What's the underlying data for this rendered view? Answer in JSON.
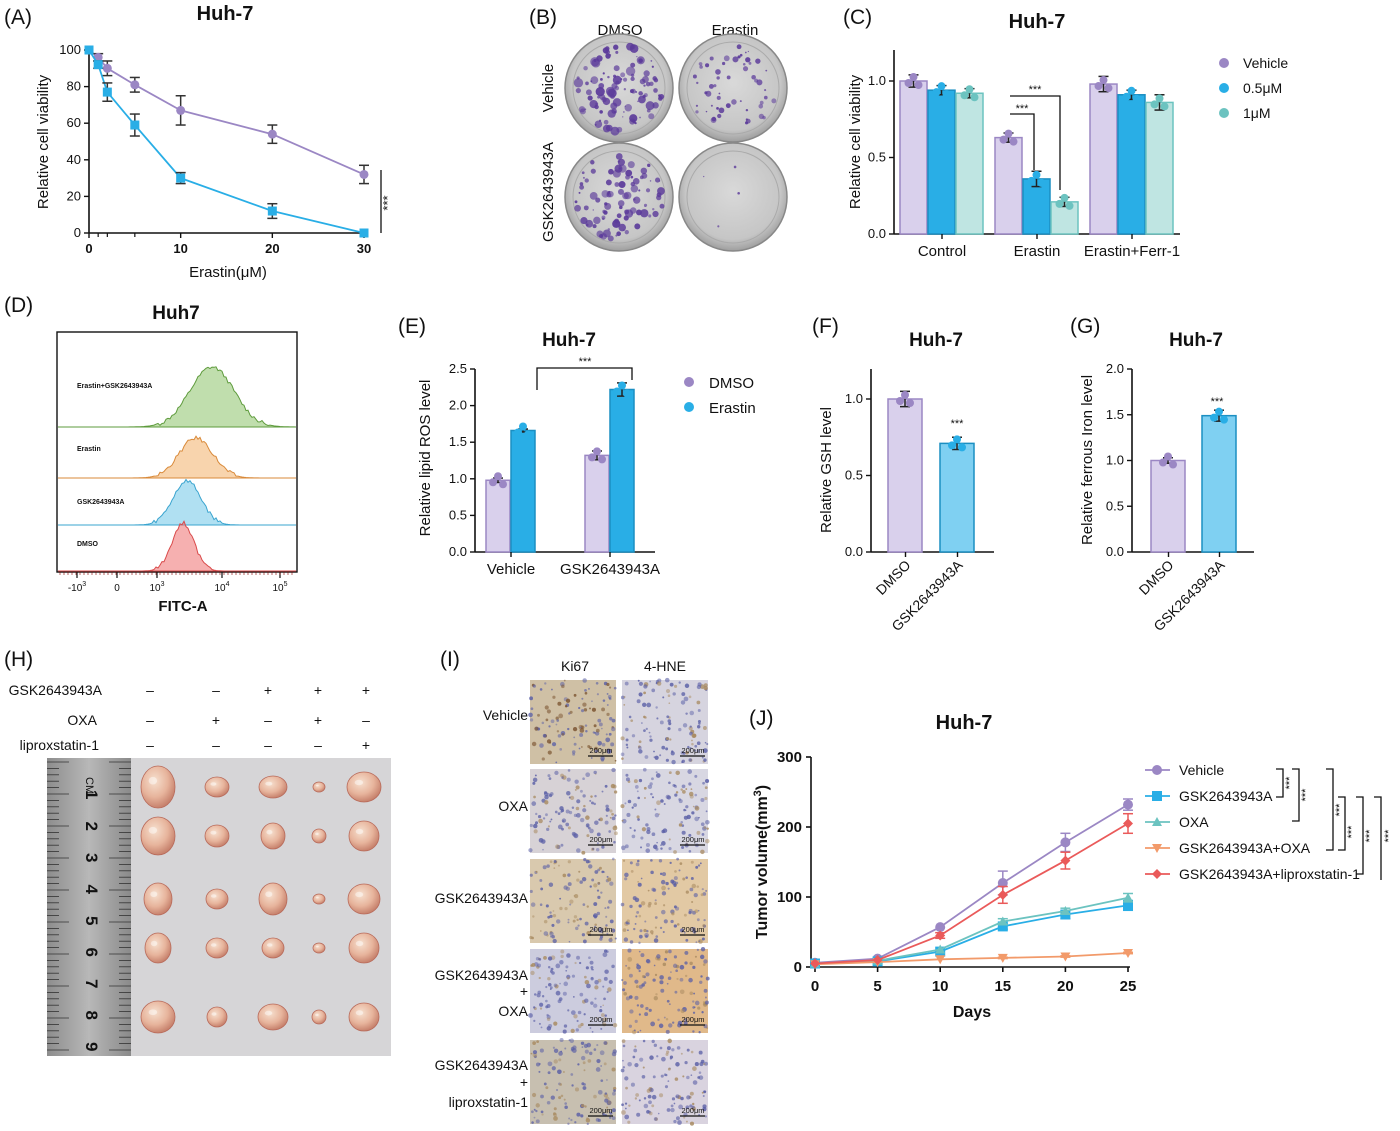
{
  "colors": {
    "purple": "#9b87c4",
    "purple_fill": "#d9d0ec",
    "cyan": "#29aee6",
    "cyan_fill": "#7fd0f2",
    "teal": "#6cc3c0",
    "teal_fill": "#bfe5e2",
    "orange": "#f29a6a",
    "red": "#ea5a5a",
    "hist_green": "#8cc36a",
    "hist_orange": "#f2b06a",
    "hist_blue": "#6fc6e8",
    "hist_red": "#ee7070"
  },
  "panels": {
    "A": {
      "letter": "(A)",
      "title": "Huh-7",
      "xlabel": "Erastin(μM)",
      "ylabel": "Relative cell viability",
      "sig": "***",
      "xticks": [
        "0",
        "10",
        "20",
        "30"
      ],
      "yticks": [
        "0",
        "20",
        "40",
        "60",
        "80",
        "100"
      ]
    },
    "B": {
      "letter": "(B)",
      "col_labels": [
        "DMSO",
        "Erastin"
      ],
      "row_labels": [
        "Vehicle",
        "GSK2643943A"
      ]
    },
    "C": {
      "letter": "(C)",
      "title": "Huh-7",
      "ylabel": "Relative cell viability",
      "categories": [
        "Control",
        "Erastin",
        "Erastin+Ferr-1"
      ],
      "legend": [
        "Vehicle",
        "0.5μM",
        "1μM"
      ],
      "sig1": "***",
      "sig2": "***",
      "yticks": [
        "0.0",
        "0.5",
        "1.0"
      ]
    },
    "D": {
      "letter": "(D)",
      "title": "Huh7",
      "xlabel": "FITC-A",
      "tracks": [
        "Erastin+GSK2643943A",
        "Erastin",
        "GSK2643943A",
        "DMSO"
      ],
      "xticks": [
        "-10",
        "0",
        "10",
        "10",
        "10"
      ],
      "xtick_exps": [
        "3",
        "",
        "3",
        "4",
        "5"
      ]
    },
    "E": {
      "letter": "(E)",
      "title": "Huh-7",
      "ylabel": "Relative lipid ROS level",
      "categories": [
        "Vehicle",
        "GSK2643943A"
      ],
      "legend": [
        "DMSO",
        "Erastin"
      ],
      "sig": "***",
      "yticks": [
        "0.0",
        "0.5",
        "1.0",
        "1.5",
        "2.0",
        "2.5"
      ]
    },
    "F": {
      "letter": "(F)",
      "title": "Huh-7",
      "ylabel": "Relative GSH level",
      "categories": [
        "DMSO",
        "GSK2643943A"
      ],
      "sig": "***",
      "yticks": [
        "0.0",
        "0.5",
        "1.0"
      ]
    },
    "G": {
      "letter": "(G)",
      "title": "Huh-7",
      "ylabel": "Relative ferrous Iron level",
      "categories": [
        "DMSO",
        "GSK2643943A"
      ],
      "sig": "***",
      "yticks": [
        "0.0",
        "0.5",
        "1.0",
        "1.5",
        "2.0"
      ]
    },
    "H": {
      "letter": "(H)",
      "rows": [
        {
          "label": "GSK2643943A",
          "marks": [
            "–",
            "–",
            "+",
            "+",
            "+"
          ]
        },
        {
          "label": "OXA",
          "marks": [
            "–",
            "+",
            "–",
            "+",
            "–"
          ]
        },
        {
          "label": "liproxstatin-1",
          "marks": [
            "–",
            "–",
            "–",
            "–",
            "+"
          ]
        }
      ],
      "ruler_unit": "CM",
      "ruler_numbers": [
        "1",
        "2",
        "3",
        "4",
        "5",
        "6",
        "7",
        "8",
        "9"
      ]
    },
    "I": {
      "letter": "(I)",
      "col_labels": [
        "Ki67",
        "4-HNE"
      ],
      "row_labels": [
        [
          "Vehicle"
        ],
        [
          "OXA"
        ],
        [
          "GSK2643943A"
        ],
        [
          "GSK2643943A",
          "+",
          "OXA"
        ],
        [
          "GSK2643943A",
          "+",
          "liproxstatin-1"
        ]
      ],
      "scale_label": "200μm"
    },
    "J": {
      "letter": "(J)",
      "title": "Huh-7",
      "xlabel": "Days",
      "ylabel_main": "Tumor volume(mm",
      "ylabel_sup": "3",
      "ylabel_end": ")",
      "xticks": [
        "0",
        "5",
        "10",
        "15",
        "20",
        "25"
      ],
      "yticks": [
        "0",
        "100",
        "200",
        "300"
      ],
      "sig": "***"
    }
  },
  "chart_data": [
    {
      "panel": "A",
      "type": "line",
      "title": "Huh-7",
      "xlabel": "Erastin(μM)",
      "ylabel": "Relative cell viability",
      "xlim": [
        0,
        30
      ],
      "ylim": [
        0,
        100
      ],
      "series": [
        {
          "name": "",
          "color": "#9b87c4",
          "x": [
            0,
            1,
            2,
            5,
            10,
            20,
            30
          ],
          "y": [
            100,
            96,
            90,
            81,
            67,
            54,
            32
          ],
          "err": [
            0,
            2,
            4,
            4,
            8,
            5,
            5
          ]
        },
        {
          "name": "",
          "color": "#29aee6",
          "x": [
            0,
            1,
            2,
            5,
            10,
            20,
            30
          ],
          "y": [
            100,
            92,
            77,
            59,
            30,
            12,
            0
          ],
          "err": [
            0,
            2,
            5,
            6,
            3,
            4,
            0
          ]
        }
      ]
    },
    {
      "panel": "C",
      "type": "bar",
      "title": "Huh-7",
      "ylabel": "Relative cell viability",
      "ylim": [
        0,
        1.0
      ],
      "categories": [
        "Control",
        "Erastin",
        "Erastin+Ferr-1"
      ],
      "series": [
        {
          "name": "Vehicle",
          "values": [
            1.0,
            0.63,
            0.98
          ],
          "err": [
            0.04,
            0.03,
            0.05
          ]
        },
        {
          "name": "0.5μM",
          "values": [
            0.94,
            0.36,
            0.91
          ],
          "err": [
            0.03,
            0.05,
            0.03
          ]
        },
        {
          "name": "1μM",
          "values": [
            0.92,
            0.21,
            0.86
          ],
          "err": [
            0.03,
            0.03,
            0.05
          ]
        }
      ]
    },
    {
      "panel": "E",
      "type": "bar",
      "title": "Huh-7",
      "ylabel": "Relative lipid ROS level",
      "ylim": [
        0,
        2.5
      ],
      "categories": [
        "Vehicle",
        "GSK2643943A"
      ],
      "series": [
        {
          "name": "DMSO",
          "values": [
            0.98,
            1.32
          ],
          "err": [
            0.03,
            0.06
          ]
        },
        {
          "name": "Erastin",
          "values": [
            1.66,
            2.22
          ],
          "err": [
            0.02,
            0.09
          ]
        }
      ]
    },
    {
      "panel": "F",
      "type": "bar",
      "title": "Huh-7",
      "ylabel": "Relative GSH level",
      "ylim": [
        0,
        1.0
      ],
      "categories": [
        "DMSO",
        "GSK2643943A"
      ],
      "values": [
        1.0,
        0.71
      ],
      "err": [
        0.05,
        0.04
      ]
    },
    {
      "panel": "G",
      "type": "bar",
      "title": "Huh-7",
      "ylabel": "Relative ferrous Iron level",
      "ylim": [
        0,
        2.0
      ],
      "categories": [
        "DMSO",
        "GSK2643943A"
      ],
      "values": [
        1.0,
        1.49
      ],
      "err": [
        0.03,
        0.06
      ]
    },
    {
      "panel": "J",
      "type": "line",
      "title": "Huh-7",
      "xlabel": "Days",
      "ylabel": "Tumor volume(mm3)",
      "xlim": [
        0,
        25
      ],
      "ylim": [
        0,
        300
      ],
      "x": [
        0,
        5,
        10,
        15,
        20,
        25
      ],
      "series": [
        {
          "name": "Vehicle",
          "color": "#9b87c4",
          "marker": "circle",
          "values": [
            6,
            12,
            57,
            120,
            178,
            232
          ],
          "err": [
            0,
            0,
            0,
            17,
            13,
            8
          ]
        },
        {
          "name": "GSK2643943A",
          "color": "#29aee6",
          "marker": "square",
          "values": [
            5,
            8,
            22,
            58,
            75,
            88
          ],
          "err": [
            0,
            0,
            0,
            4,
            6,
            7
          ]
        },
        {
          "name": "OXA",
          "color": "#6cc3c0",
          "marker": "triangle",
          "values": [
            5,
            9,
            25,
            65,
            80,
            99
          ],
          "err": [
            0,
            0,
            0,
            4,
            4,
            6
          ]
        },
        {
          "name": "GSK2643943A+OXA",
          "color": "#f29a6a",
          "marker": "triangle-down",
          "values": [
            4,
            7,
            11,
            13,
            15,
            20
          ],
          "err": [
            0,
            0,
            0,
            1,
            1,
            1
          ]
        },
        {
          "name": "GSK2643943A+liproxstatin-1",
          "color": "#ea5a5a",
          "marker": "diamond",
          "values": [
            5,
            10,
            45,
            103,
            152,
            205
          ],
          "err": [
            0,
            0,
            4,
            12,
            12,
            14
          ]
        }
      ]
    }
  ]
}
